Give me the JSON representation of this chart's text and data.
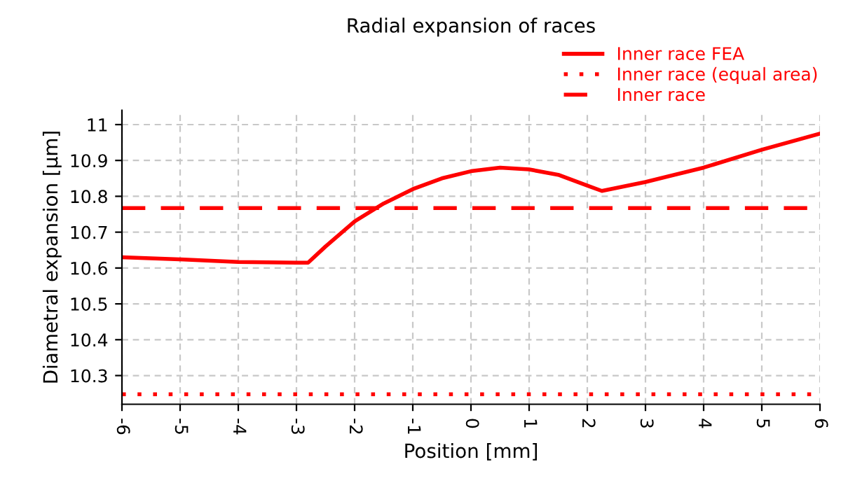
{
  "chart_data": {
    "type": "line",
    "title": "Radial expansion of races",
    "xlabel": "Position [mm]",
    "ylabel": "Diametral expansion [µm]",
    "xlim": [
      -6,
      6
    ],
    "xticks": [
      -6,
      -5,
      -4,
      -3,
      -2,
      -1,
      0,
      1,
      2,
      3,
      4,
      5,
      6
    ],
    "ylim": [
      10.22,
      11.04
    ],
    "yticks": [
      10.3,
      10.4,
      10.5,
      10.6,
      10.7,
      10.8,
      10.9,
      11
    ],
    "grid": true,
    "legend": "top right",
    "marker": "none",
    "series": [
      {
        "name": "Inner race FEA",
        "color": "#ff0000",
        "line_style": "solid",
        "x": [
          -6,
          -5,
          -4,
          -3,
          -2.8,
          -2.5,
          -2,
          -1.5,
          -1,
          -0.5,
          0,
          0.5,
          1,
          1.5,
          2,
          2.25,
          3,
          4,
          5,
          6
        ],
        "values": [
          10.63,
          10.624,
          10.617,
          10.615,
          10.615,
          10.66,
          10.73,
          10.78,
          10.82,
          10.85,
          10.87,
          10.88,
          10.875,
          10.86,
          10.83,
          10.815,
          10.84,
          10.88,
          10.93,
          10.975
        ]
      },
      {
        "name": "Inner race (equal area)",
        "color": "#ff0000",
        "line_style": "dotted",
        "x": [
          -6,
          6
        ],
        "values": [
          10.248,
          10.248
        ]
      },
      {
        "name": "Inner race",
        "color": "#ff0000",
        "line_style": "dashed",
        "x": [
          -6,
          6
        ],
        "values": [
          10.767,
          10.767
        ]
      }
    ]
  }
}
